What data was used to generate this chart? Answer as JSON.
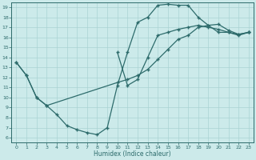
{
  "xlabel": "Humidex (Indice chaleur)",
  "background_color": "#cceaea",
  "grid_color": "#aad4d4",
  "line_color": "#2d6b6b",
  "xlim": [
    -0.5,
    23.5
  ],
  "ylim": [
    5.5,
    19.5
  ],
  "xticks": [
    0,
    1,
    2,
    3,
    4,
    5,
    6,
    7,
    8,
    9,
    10,
    11,
    12,
    13,
    14,
    15,
    16,
    17,
    18,
    19,
    20,
    21,
    22,
    23
  ],
  "yticks": [
    6,
    7,
    8,
    9,
    10,
    11,
    12,
    13,
    14,
    15,
    16,
    17,
    18,
    19
  ],
  "line1_x": [
    0,
    1,
    2,
    3,
    4,
    5,
    6,
    7,
    8,
    9,
    10,
    11,
    12,
    13,
    14,
    15,
    16,
    17,
    18,
    19,
    20,
    21,
    22,
    23
  ],
  "line1_y": [
    13.5,
    12.2,
    10.0,
    9.2,
    8.3,
    7.2,
    6.8,
    6.5,
    6.3,
    7.0,
    11.2,
    14.5,
    17.5,
    18.0,
    19.2,
    19.3,
    19.2,
    19.2,
    18.0,
    17.2,
    16.5,
    16.5,
    16.2,
    16.5
  ],
  "line2_x": [
    10,
    11,
    12,
    13,
    14,
    15,
    16,
    17,
    18,
    19,
    20,
    21,
    22,
    23
  ],
  "line2_y": [
    14.5,
    11.2,
    11.8,
    14.0,
    16.2,
    16.5,
    16.8,
    17.0,
    17.2,
    17.0,
    16.8,
    16.5,
    16.3,
    16.5
  ],
  "line3_x": [
    0,
    1,
    2,
    3,
    10,
    11,
    12,
    13,
    14,
    15,
    16,
    17,
    18,
    19,
    20,
    21,
    22,
    23
  ],
  "line3_y": [
    13.5,
    12.2,
    10.0,
    9.2,
    11.5,
    11.8,
    12.2,
    12.8,
    13.8,
    14.8,
    15.8,
    16.2,
    17.0,
    17.2,
    17.3,
    16.7,
    16.3,
    16.5
  ]
}
